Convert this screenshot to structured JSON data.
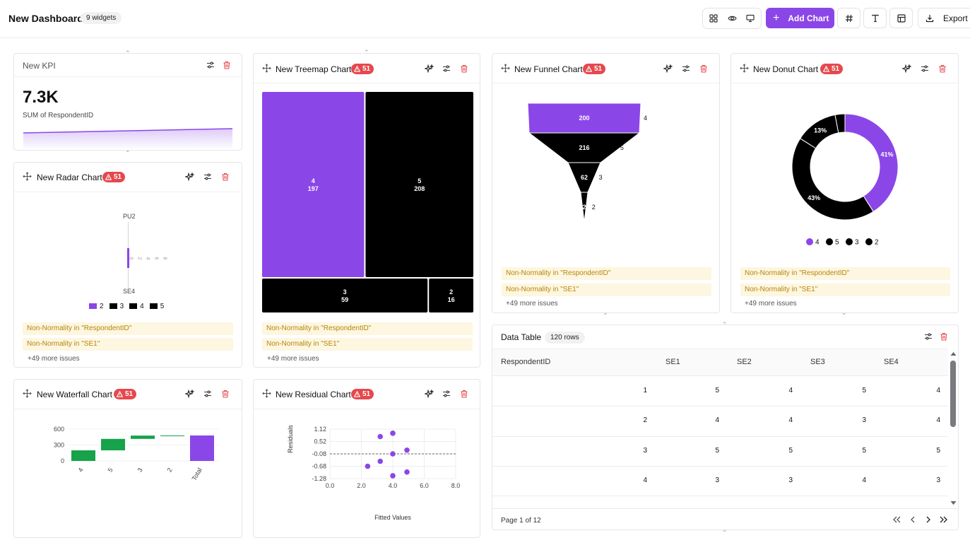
{
  "header": {
    "title": "New Dashboard",
    "widget_count": "9 widgets",
    "add_chart_label": "Add Chart",
    "export_label": "Export"
  },
  "colors": {
    "accent": "#8b46e8",
    "series_dark": "#000000",
    "badge_red": "#e5484d",
    "issue_bg": "#fdf6e0",
    "issue_text": "#b7860b",
    "waterfall_green": "#16a34a"
  },
  "icons": {
    "view_toggle": [
      "grid-icon",
      "eye-icon",
      "presentation-icon"
    ],
    "toolbar": [
      "hash-icon",
      "text-icon",
      "layout-icon"
    ],
    "card_actions": [
      "sparkle-icon",
      "sliders-icon",
      "trash-icon",
      "move-icon",
      "warning-icon"
    ]
  },
  "kpi": {
    "title": "New KPI",
    "value": "7.3K",
    "subtitle": "SUM of RespondentID"
  },
  "radar": {
    "title": "New Radar Chart",
    "badge": "51",
    "axis_top": "PU2",
    "axis_bottom": "SE4",
    "tick_labels": [
      "0",
      "2",
      "4",
      "6",
      "8"
    ],
    "legend": [
      {
        "label": "2",
        "color": "#8b46e8"
      },
      {
        "label": "3",
        "color": "#000000"
      },
      {
        "label": "4",
        "color": "#000000"
      },
      {
        "label": "5",
        "color": "#000000"
      }
    ],
    "issues": [
      "Non-Normality in \"RespondentID\"",
      "Non-Normality in \"SE1\""
    ],
    "more": "+49 more issues"
  },
  "treemap": {
    "title": "New Treemap Chart",
    "badge": "51",
    "issues": [
      "Non-Normality in \"RespondentID\"",
      "Non-Normality in \"SE1\""
    ],
    "more": "+49 more issues"
  },
  "funnel": {
    "title": "New Funnel Chart",
    "badge": "51",
    "issues": [
      "Non-Normality in \"RespondentID\"",
      "Non-Normality in \"SE1\""
    ],
    "more": "+49 more issues"
  },
  "donut": {
    "title": "New Donut Chart",
    "badge": "51",
    "issues": [
      "Non-Normality in \"RespondentID\"",
      "Non-Normality in \"SE1\""
    ],
    "more": "+49 more issues"
  },
  "waterfall": {
    "title": "New Waterfall Chart",
    "badge": "51"
  },
  "residual": {
    "title": "New Residual Chart",
    "badge": "51"
  },
  "table": {
    "title": "Data Table",
    "row_count": "120 rows",
    "columns": [
      "RespondentID",
      "SE1",
      "SE2",
      "SE3",
      "SE4"
    ],
    "rows": [
      [
        "1",
        "5",
        "4",
        "5",
        "4"
      ],
      [
        "2",
        "4",
        "4",
        "3",
        "4"
      ],
      [
        "3",
        "5",
        "5",
        "5",
        "5"
      ],
      [
        "4",
        "3",
        "3",
        "4",
        "3"
      ]
    ],
    "pagination": "Page 1 of 12"
  },
  "chart_data": [
    {
      "type": "area",
      "name": "kpi-sparkline",
      "x": [
        0,
        1
      ],
      "y": [
        0.2,
        0.35
      ]
    },
    {
      "type": "treemap",
      "name": "treemap",
      "categories": [
        "4",
        "5",
        "3",
        "2"
      ],
      "values": [
        197,
        208,
        59,
        16
      ],
      "colors": [
        "#8b46e8",
        "#000000",
        "#000000",
        "#000000"
      ]
    },
    {
      "type": "funnel",
      "name": "funnel",
      "categories": [
        "4",
        "5",
        "3",
        "2"
      ],
      "values": [
        200,
        216,
        62,
        2
      ],
      "colors": [
        "#8b46e8",
        "#000000",
        "#000000",
        "#000000"
      ]
    },
    {
      "type": "pie",
      "name": "donut",
      "categories": [
        "4",
        "5",
        "3",
        "2"
      ],
      "values": [
        41,
        43,
        13,
        3
      ],
      "data_labels": [
        "41%",
        "43%",
        "13%",
        ""
      ],
      "colors": [
        "#8b46e8",
        "#000000",
        "#000000",
        "#000000"
      ],
      "legend": [
        "4",
        "5",
        "3",
        "2"
      ]
    },
    {
      "type": "bar",
      "name": "waterfall",
      "categories": [
        "4",
        "5",
        "3",
        "2",
        "Total"
      ],
      "values": [
        200,
        216,
        62,
        2,
        480
      ],
      "ylim": [
        0,
        600
      ],
      "yticks": [
        "0",
        "300",
        "600"
      ]
    },
    {
      "type": "scatter",
      "name": "residual",
      "xlabel": "Fitted Values",
      "ylabel": "Residuals",
      "xlim": [
        0,
        8
      ],
      "ylim": [
        -1.28,
        1.12
      ],
      "xticks": [
        "0.0",
        "2.0",
        "4.0",
        "6.0",
        "8.0"
      ],
      "yticks": [
        "1.12",
        "0.52",
        "-0.08",
        "-0.68",
        "-1.28"
      ],
      "points": [
        [
          2.4,
          -0.68
        ],
        [
          3.2,
          -0.44
        ],
        [
          3.2,
          0.76
        ],
        [
          4.0,
          0.92
        ],
        [
          4.0,
          -0.08
        ],
        [
          4.0,
          -1.14
        ],
        [
          4.9,
          0.1
        ],
        [
          4.9,
          -0.96
        ]
      ],
      "reference_line": -0.08
    }
  ]
}
